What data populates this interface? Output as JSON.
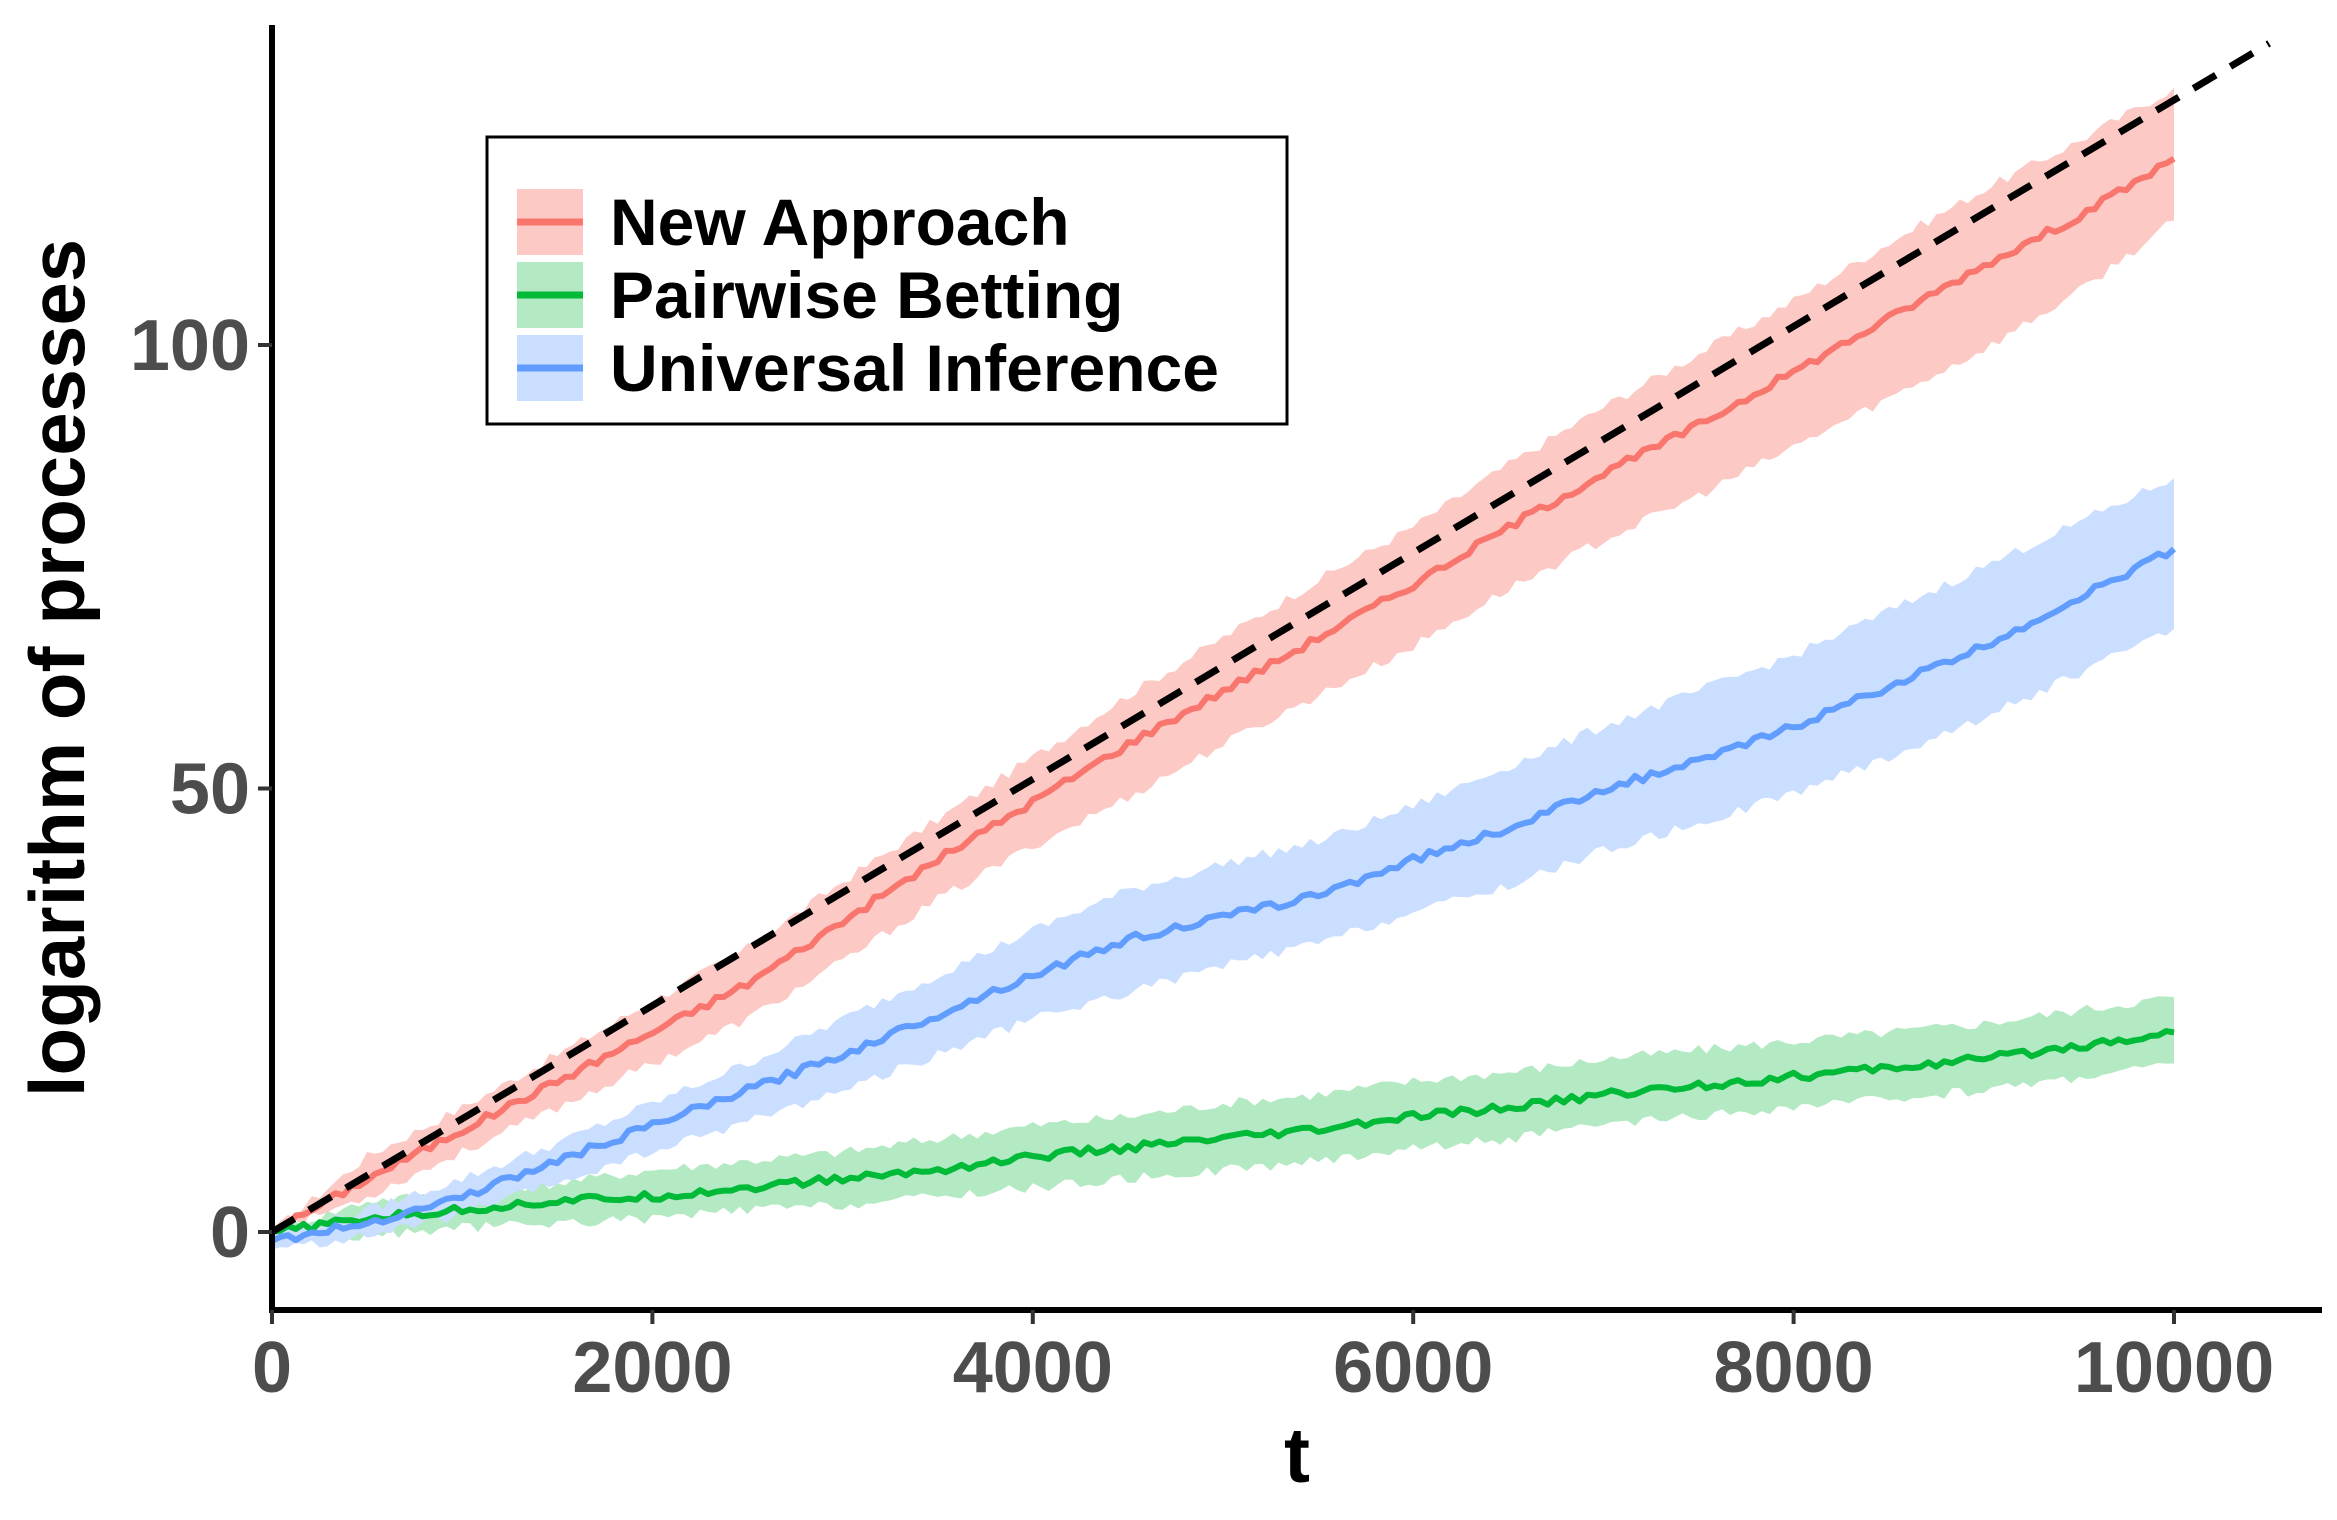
{
  "chart_data": {
    "type": "line",
    "title": "",
    "xlabel": "t",
    "ylabel": "logarithm of processes",
    "xlim": [
      0,
      10500
    ],
    "ylim": [
      -8,
      135
    ],
    "xticks": [
      0,
      2000,
      4000,
      6000,
      8000,
      10000
    ],
    "yticks": [
      0,
      50,
      100
    ],
    "grid": false,
    "legend_position": "top-left",
    "reference_line": {
      "style": "dashed",
      "color": "#000000",
      "x": [
        0,
        10500
      ],
      "y": [
        0,
        134
      ]
    },
    "series": [
      {
        "name": "New Approach",
        "color": "#f8766d",
        "band_color": "#fcc9c5",
        "x": [
          0,
          500,
          1000,
          1500,
          2000,
          2500,
          3000,
          3500,
          4000,
          4500,
          5000,
          5500,
          6000,
          6500,
          7000,
          7500,
          8000,
          8500,
          9000,
          9500,
          10000
        ],
        "y": [
          0,
          6,
          11.5,
          17,
          22.5,
          28,
          35,
          42,
          48.5,
          55,
          61,
          67,
          73,
          79.5,
          85.5,
          91,
          97,
          103,
          109,
          114.5,
          121
        ],
        "lower": [
          0,
          4,
          9,
          14,
          19,
          24,
          30.5,
          37.5,
          43.5,
          49,
          55,
          60.5,
          66,
          72.5,
          78,
          83,
          88.5,
          94,
          99.5,
          106,
          114
        ],
        "upper": [
          0,
          8.5,
          14,
          20,
          26,
          32,
          39.5,
          46.5,
          53.5,
          60.5,
          67,
          73.5,
          79.5,
          86.5,
          93,
          99,
          105,
          111.5,
          117.5,
          123,
          129
        ]
      },
      {
        "name": "Pairwise Betting",
        "color": "#00ba38",
        "band_color": "#b3e9c3",
        "x": [
          0,
          500,
          1000,
          1500,
          2000,
          2500,
          3000,
          3500,
          4000,
          4500,
          5000,
          5500,
          6000,
          6500,
          7000,
          7500,
          8000,
          8500,
          9000,
          9500,
          10000
        ],
        "y": [
          0,
          1.5,
          2.5,
          3.5,
          4,
          5,
          6,
          7,
          8.5,
          9.5,
          10.5,
          11.5,
          13,
          14,
          15.5,
          16.5,
          17.5,
          18.5,
          19.5,
          21,
          22.5
        ],
        "lower": [
          0,
          -0.5,
          0.5,
          1,
          1.5,
          2.5,
          3,
          4,
          5,
          6,
          7,
          8,
          9.5,
          10.5,
          12,
          13,
          14,
          15,
          16,
          17.5,
          19
        ],
        "upper": [
          0,
          3.5,
          4.5,
          5.5,
          7,
          8,
          9,
          10.5,
          12,
          13,
          14.5,
          15.5,
          17,
          18,
          19.5,
          20.5,
          21.5,
          22.5,
          23.5,
          25,
          26.5
        ]
      },
      {
        "name": "Universal Inference",
        "color": "#619cff",
        "band_color": "#cadeff",
        "x": [
          0,
          500,
          1000,
          1500,
          2000,
          2500,
          3000,
          3500,
          4000,
          4500,
          5000,
          5500,
          6000,
          6500,
          7000,
          7500,
          8000,
          8500,
          9000,
          9500,
          10000
        ],
        "y": [
          -1,
          1,
          4,
          8,
          12,
          16,
          20,
          24.5,
          29,
          33,
          35.5,
          38,
          42,
          45.5,
          50,
          53,
          57,
          61.5,
          66,
          71.5,
          77
        ],
        "lower": [
          -2,
          -0.5,
          2,
          5.5,
          9,
          12.5,
          16,
          20,
          24,
          27,
          30,
          32.5,
          36,
          39,
          43,
          46,
          49.5,
          53.5,
          58,
          63,
          68
        ],
        "upper": [
          -0.5,
          2.5,
          6,
          10,
          14.5,
          19,
          24,
          29,
          34,
          38.5,
          41.5,
          44,
          48,
          52.5,
          57,
          61,
          65,
          70,
          75,
          80,
          85
        ]
      }
    ]
  }
}
